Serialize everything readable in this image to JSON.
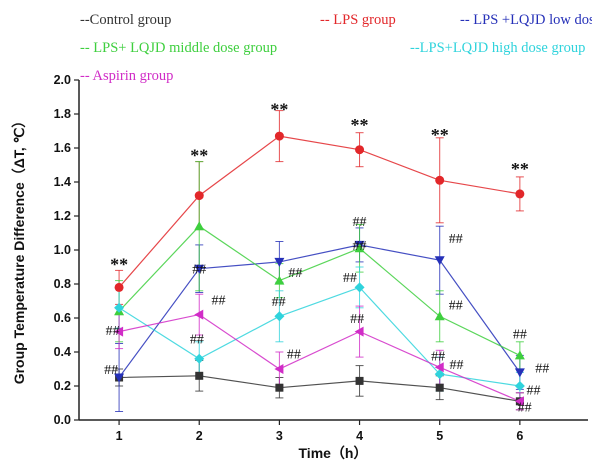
{
  "chart_data": {
    "type": "line",
    "x": [
      1,
      2,
      3,
      4,
      5,
      6
    ],
    "xlabel": "Time（h）",
    "ylabel": "Group Temperature Difference（ΔT, ℃）",
    "xlim": [
      0.5,
      6.85
    ],
    "ylim": [
      0.0,
      2.0
    ],
    "yticks": [
      "0.0",
      "0.2",
      "0.4",
      "0.6",
      "0.8",
      "1.0",
      "1.2",
      "1.4",
      "1.6",
      "1.8",
      "2.0"
    ],
    "xticks": [
      "1",
      "2",
      "3",
      "4",
      "5",
      "6"
    ],
    "grid": false,
    "legend_position": "top",
    "series": [
      {
        "name": "--Control group",
        "color": "#333333",
        "marker": "square",
        "values": [
          0.25,
          0.26,
          0.19,
          0.23,
          0.19,
          0.11
        ],
        "err": [
          0.05,
          0.09,
          0.06,
          0.09,
          0.07,
          0.05
        ]
      },
      {
        "name": "-- LPS group",
        "color": "#e2272a",
        "marker": "circle",
        "values": [
          0.78,
          1.32,
          1.67,
          1.59,
          1.41,
          1.33
        ],
        "err": [
          0.1,
          0.2,
          0.15,
          0.1,
          0.25,
          0.1
        ]
      },
      {
        "name": "-- LPS +LQJD low dose group",
        "color": "#2530b8",
        "marker": "triangle-down",
        "values": [
          0.25,
          0.89,
          0.93,
          1.03,
          0.94,
          0.28
        ],
        "err": [
          0.2,
          0.14,
          0.12,
          0.1,
          0.2,
          0.1
        ]
      },
      {
        "name": "-- LPS+ LQJD middle dose group",
        "color": "#3ecf3e",
        "marker": "triangle-up",
        "values": [
          0.64,
          1.14,
          0.82,
          1.01,
          0.61,
          0.38
        ],
        "err": [
          0.18,
          0.38,
          0.1,
          0.14,
          0.15,
          0.08
        ]
      },
      {
        "name": "--LPS+LQJD high dose group",
        "color": "#2fd3dc",
        "marker": "diamond",
        "values": [
          0.66,
          0.36,
          0.61,
          0.78,
          0.27,
          0.2
        ],
        "err": [
          0.12,
          0.1,
          0.15,
          0.12,
          0.1,
          0.08
        ]
      },
      {
        "name": "-- Aspirin group",
        "color": "#d12cc7",
        "marker": "triangle-left",
        "values": [
          0.52,
          0.62,
          0.3,
          0.52,
          0.31,
          0.11
        ],
        "err": [
          0.1,
          0.12,
          0.1,
          0.15,
          0.1,
          0.05
        ]
      }
    ],
    "annotations": [
      {
        "text": "**",
        "x": 1,
        "y": 0.91
      },
      {
        "text": "**",
        "x": 2,
        "y": 1.55
      },
      {
        "text": "**",
        "x": 3,
        "y": 1.82
      },
      {
        "text": "**",
        "x": 4,
        "y": 1.73
      },
      {
        "text": "**",
        "x": 5,
        "y": 1.67
      },
      {
        "text": "**",
        "x": 6,
        "y": 1.47
      },
      {
        "text": "##",
        "x": 0.9,
        "y": 0.3
      },
      {
        "text": "##",
        "x": 0.92,
        "y": 0.53
      },
      {
        "text": "##",
        "x": 2.0,
        "y": 0.89
      },
      {
        "text": "##",
        "x": 2.24,
        "y": 0.71
      },
      {
        "text": "##",
        "x": 1.97,
        "y": 0.48
      },
      {
        "text": "##",
        "x": 3.2,
        "y": 0.87
      },
      {
        "text": "##",
        "x": 2.99,
        "y": 0.7
      },
      {
        "text": "##",
        "x": 3.18,
        "y": 0.39
      },
      {
        "text": "##",
        "x": 4.0,
        "y": 1.17
      },
      {
        "text": "##",
        "x": 4.0,
        "y": 1.03
      },
      {
        "text": "##",
        "x": 3.88,
        "y": 0.84
      },
      {
        "text": "##",
        "x": 3.97,
        "y": 0.6
      },
      {
        "text": "##",
        "x": 5.2,
        "y": 1.07
      },
      {
        "text": "##",
        "x": 5.2,
        "y": 0.68
      },
      {
        "text": "##",
        "x": 4.98,
        "y": 0.38
      },
      {
        "text": "##",
        "x": 5.21,
        "y": 0.33
      },
      {
        "text": "##",
        "x": 6.0,
        "y": 0.51
      },
      {
        "text": "##",
        "x": 6.28,
        "y": 0.31
      },
      {
        "text": "##",
        "x": 6.17,
        "y": 0.18
      },
      {
        "text": "##",
        "x": 6.06,
        "y": 0.08
      }
    ]
  }
}
